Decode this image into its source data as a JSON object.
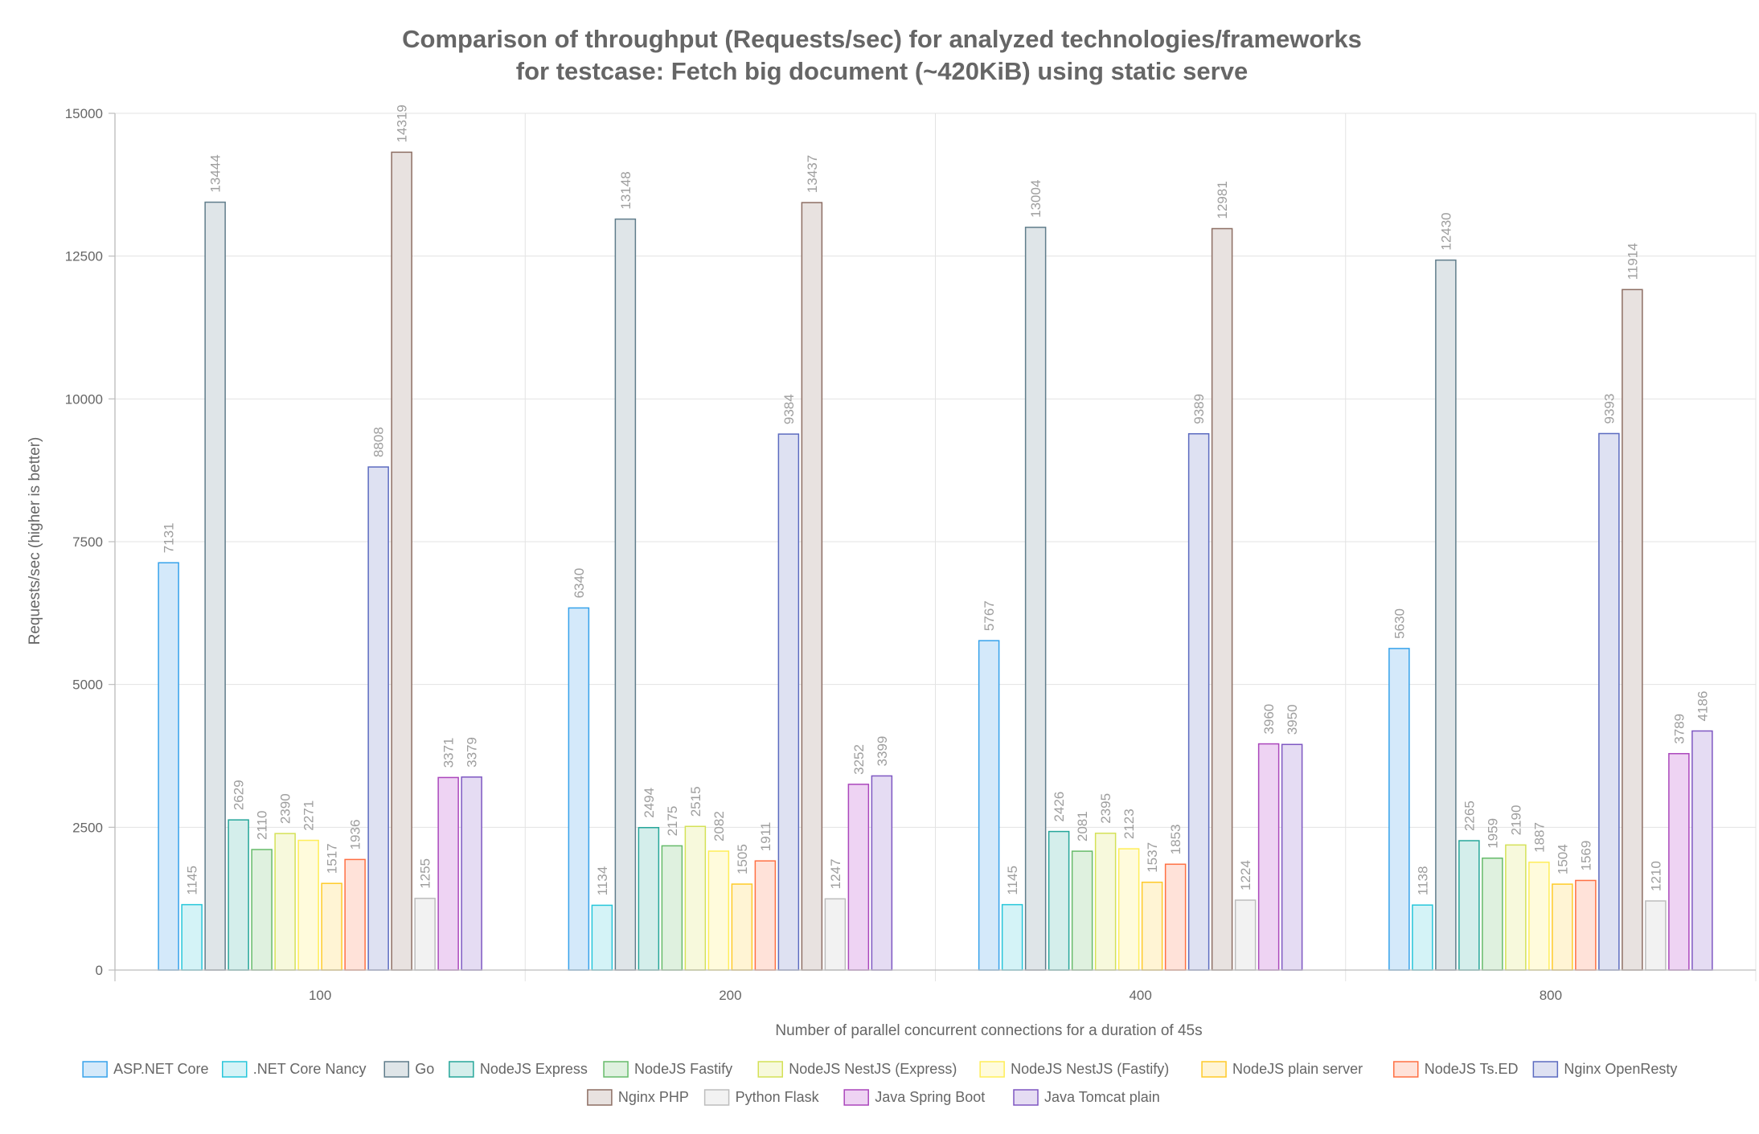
{
  "chart_data": {
    "type": "bar",
    "title": [
      "Comparison of throughput (Requests/sec) for analyzed technologies/frameworks",
      "for testcase: Fetch big document (~420KiB) using static serve"
    ],
    "xlabel": "Number of parallel concurrent connections for a duration of 45s",
    "ylabel": "Requests/sec (higher is better)",
    "ylim": [
      0,
      15000
    ],
    "yticks": [
      0,
      2500,
      5000,
      7500,
      10000,
      12500,
      15000
    ],
    "grid": true,
    "legend_position": "bottom",
    "categories": [
      "100",
      "200",
      "400",
      "800"
    ],
    "series": [
      {
        "name": "ASP.NET Core",
        "values": [
          7131,
          6340,
          5767,
          5630
        ],
        "color": "#36a2eb",
        "fill": "#d4e9fa"
      },
      {
        "name": ".NET Core Nancy",
        "values": [
          1145,
          1134,
          1145,
          1138
        ],
        "color": "#26c6da",
        "fill": "#d4f3f7"
      },
      {
        "name": "Go",
        "values": [
          13444,
          13148,
          13004,
          12430
        ],
        "color": "#607d8b",
        "fill": "#dfe5e8"
      },
      {
        "name": "NodeJS Express",
        "values": [
          2629,
          2494,
          2426,
          2265
        ],
        "color": "#26a69a",
        "fill": "#d4eeeb"
      },
      {
        "name": "NodeJS Fastify",
        "values": [
          2110,
          2175,
          2081,
          1959
        ],
        "color": "#66bb6a",
        "fill": "#dff1df"
      },
      {
        "name": "NodeJS NestJS (Express)",
        "values": [
          2390,
          2515,
          2395,
          2190
        ],
        "color": "#d4e157",
        "fill": "#f7f9dc"
      },
      {
        "name": "NodeJS NestJS (Fastify)",
        "values": [
          2271,
          2082,
          2123,
          1887
        ],
        "color": "#ffee58",
        "fill": "#fffbdc"
      },
      {
        "name": "NodeJS plain server",
        "values": [
          1517,
          1505,
          1537,
          1504
        ],
        "color": "#ffca28",
        "fill": "#fff4d4"
      },
      {
        "name": "NodeJS Ts.ED",
        "values": [
          1936,
          1911,
          1853,
          1569
        ],
        "color": "#ff7043",
        "fill": "#ffe2d9"
      },
      {
        "name": "Nginx OpenResty",
        "values": [
          8808,
          9384,
          9389,
          9393
        ],
        "color": "#5c6bc0",
        "fill": "#dee1f2"
      },
      {
        "name": "Nginx PHP",
        "values": [
          14319,
          13437,
          12981,
          11914
        ],
        "color": "#8d6e63",
        "fill": "#e8e2e0"
      },
      {
        "name": "Python Flask",
        "values": [
          1255,
          1247,
          1224,
          1210
        ],
        "color": "#bdbdbd",
        "fill": "#f2f2f2"
      },
      {
        "name": "Java Spring Boot",
        "values": [
          3371,
          3252,
          3960,
          3789
        ],
        "color": "#ab47bc",
        "fill": "#eed3f3"
      },
      {
        "name": "Java Tomcat plain",
        "values": [
          3379,
          3399,
          3950,
          4186
        ],
        "color": "#7e57c2",
        "fill": "#e5dcf3"
      }
    ]
  }
}
